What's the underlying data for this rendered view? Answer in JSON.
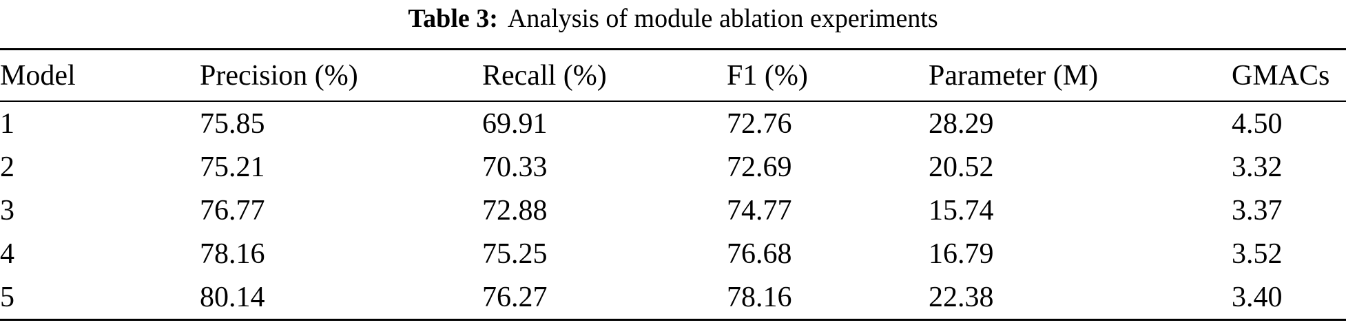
{
  "caption": {
    "label": "Table 3:",
    "text": "Analysis of module ablation experiments"
  },
  "columns": [
    "Model",
    "Precision (%)",
    "Recall (%)",
    "F1 (%)",
    "Parameter (M)",
    "GMACs"
  ],
  "rows": [
    [
      "1",
      "75.85",
      "69.91",
      "72.76",
      "28.29",
      "4.50"
    ],
    [
      "2",
      "75.21",
      "70.33",
      "72.69",
      "20.52",
      "3.32"
    ],
    [
      "3",
      "76.77",
      "72.88",
      "74.77",
      "15.74",
      "3.37"
    ],
    [
      "4",
      "78.16",
      "75.25",
      "76.68",
      "16.79",
      "3.52"
    ],
    [
      "5",
      "80.14",
      "76.27",
      "78.16",
      "22.38",
      "3.40"
    ]
  ],
  "colors": {
    "text": "#000000",
    "background": "#ffffff",
    "rule": "#000000"
  }
}
